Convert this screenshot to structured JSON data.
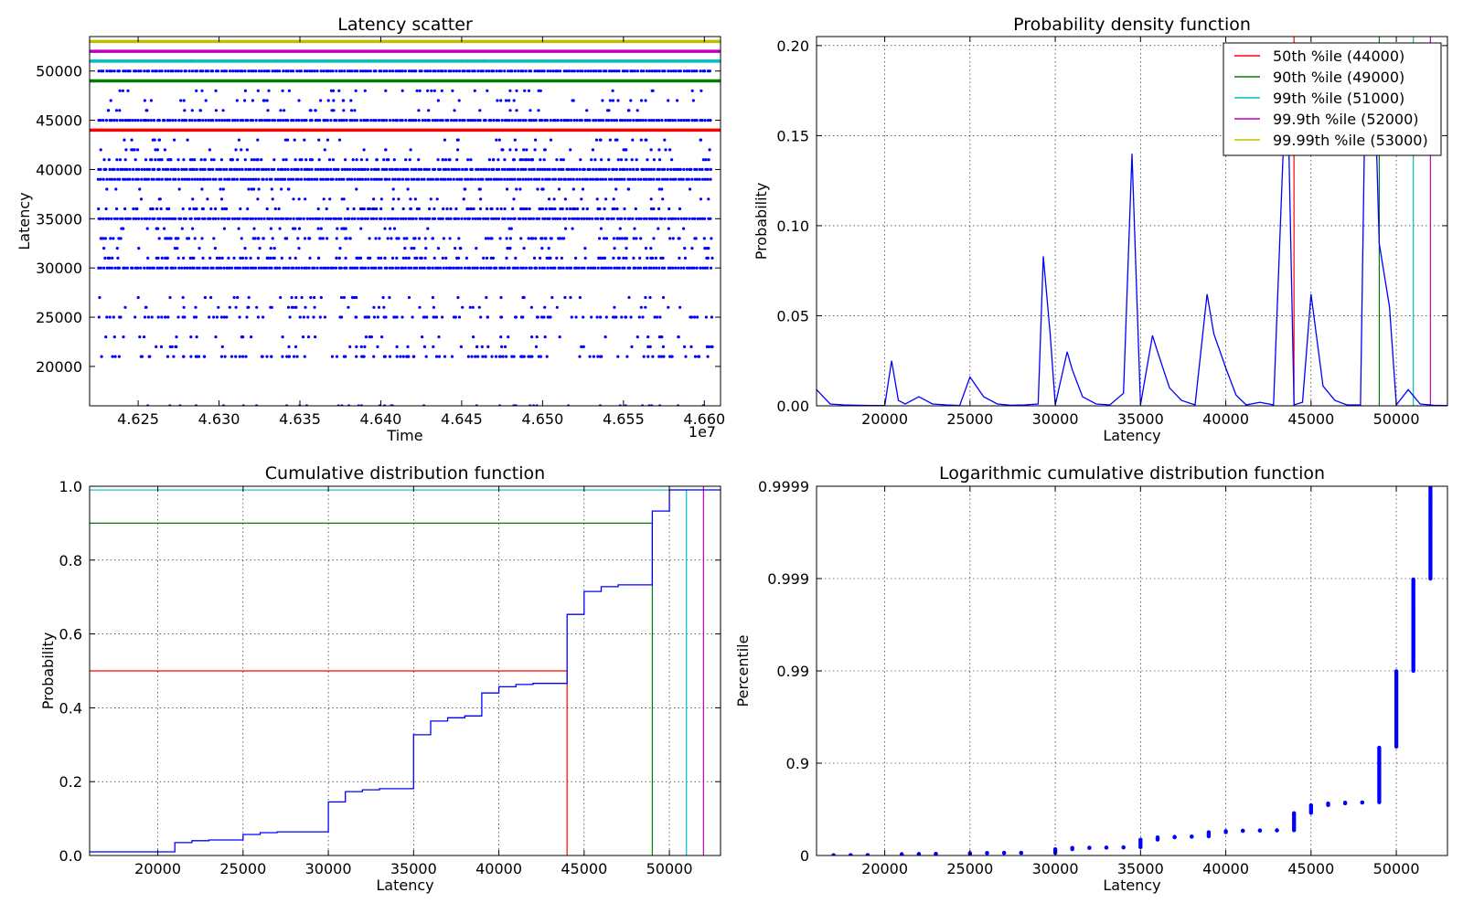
{
  "colors": {
    "blue": "#0000ff",
    "red": "#ff0000",
    "green": "#008000",
    "cyan": "#00bfbf",
    "magenta": "#bf00bf",
    "olive": "#bfbf00"
  },
  "percentile_lines": [
    {
      "label": "50th %ile    (44000)",
      "value": 44000,
      "prob": 0.5,
      "color": "#ff0000"
    },
    {
      "label": "90th %ile    (49000)",
      "value": 49000,
      "prob": 0.9,
      "color": "#008000"
    },
    {
      "label": "99th %ile    (51000)",
      "value": 51000,
      "prob": 0.99,
      "color": "#00bfbf"
    },
    {
      "label": "99.9th %ile  (52000)",
      "value": 52000,
      "prob": 0.999,
      "color": "#bf00bf"
    },
    {
      "label": "99.99th %ile (53000)",
      "value": 53000,
      "prob": 0.9999,
      "color": "#bfbf00"
    }
  ],
  "chart_data": [
    {
      "type": "scatter",
      "title": "Latency scatter",
      "xlabel": "Time",
      "ylabel": "Latency",
      "x_offset_label": "1e7",
      "xlim": [
        4.622,
        4.661
      ],
      "ylim": [
        16000,
        53500
      ],
      "xticks": [
        4.625,
        4.63,
        4.635,
        4.64,
        4.645,
        4.65,
        4.655,
        4.66
      ],
      "xtick_labels": [
        "4.625",
        "4.630",
        "4.635",
        "4.640",
        "4.645",
        "4.650",
        "4.655",
        "4.660"
      ],
      "yticks": [
        20000,
        25000,
        30000,
        35000,
        40000,
        45000,
        50000
      ],
      "ytick_labels": [
        "20000",
        "25000",
        "30000",
        "35000",
        "40000",
        "45000",
        "50000"
      ],
      "grid": false,
      "dense_levels": [
        30000,
        35000,
        39000,
        40000,
        45000,
        50000
      ],
      "medium_levels": [
        21000,
        25000,
        31000,
        33000,
        36000,
        41000,
        51000
      ],
      "sparse_levels": [
        16000,
        22000,
        23000,
        26000,
        27000,
        32000,
        34000,
        37000,
        38000,
        42000,
        43000,
        46000,
        47000,
        48000
      ],
      "hlines": [
        {
          "y": 44000,
          "color": "#ff0000"
        },
        {
          "y": 49000,
          "color": "#008000"
        },
        {
          "y": 51000,
          "color": "#00bfbf"
        },
        {
          "y": 52000,
          "color": "#bf00bf"
        },
        {
          "y": 53000,
          "color": "#bfbf00"
        }
      ]
    },
    {
      "type": "line",
      "title": "Probability density function",
      "xlabel": "Latency",
      "ylabel": "Probability",
      "xlim": [
        16000,
        53000
      ],
      "ylim": [
        0,
        0.205
      ],
      "xticks": [
        20000,
        25000,
        30000,
        35000,
        40000,
        45000,
        50000
      ],
      "xtick_labels": [
        "20000",
        "25000",
        "30000",
        "35000",
        "40000",
        "45000",
        "50000"
      ],
      "yticks": [
        0,
        0.05,
        0.1,
        0.15,
        0.2
      ],
      "ytick_labels": [
        "0.00",
        "0.05",
        "0.10",
        "0.15",
        "0.20"
      ],
      "grid": true,
      "legend_position": "top-right",
      "x": [
        16000,
        16800,
        17600,
        18400,
        19200,
        20000,
        20400,
        20800,
        21200,
        22000,
        22800,
        23600,
        24400,
        25000,
        25800,
        26600,
        27400,
        28200,
        29000,
        29300,
        29700,
        30000,
        30700,
        31000,
        31600,
        32400,
        33200,
        34000,
        34500,
        35000,
        35700,
        36000,
        36700,
        37400,
        38200,
        38900,
        39300,
        40000,
        40600,
        41200,
        42000,
        42800,
        43400,
        43600,
        44000,
        44500,
        45000,
        45700,
        46400,
        47100,
        47900,
        48200,
        48700,
        49000,
        49600,
        50000,
        50700,
        51400,
        52200,
        53000
      ],
      "y": [
        0.009,
        0.001,
        0.0005,
        0.0003,
        0.0002,
        0.0002,
        0.025,
        0.003,
        0.001,
        0.005,
        0.001,
        0.0005,
        0.0002,
        0.016,
        0.005,
        0.001,
        0.0003,
        0.0005,
        0.001,
        0.083,
        0.04,
        0.0005,
        0.03,
        0.02,
        0.005,
        0.001,
        0.0005,
        0.007,
        0.14,
        0.0005,
        0.039,
        0.03,
        0.01,
        0.003,
        0.0005,
        0.062,
        0.04,
        0.021,
        0.006,
        0.0005,
        0.002,
        0.0005,
        0.15,
        0.19,
        0.0005,
        0.002,
        0.062,
        0.011,
        0.003,
        0.0005,
        0.0005,
        0.19,
        0.19,
        0.09,
        0.055,
        0.0005,
        0.009,
        0.001,
        0.0003,
        0.0001
      ]
    },
    {
      "type": "line",
      "title": "Cumulative distribution function",
      "xlabel": "Latency",
      "ylabel": "Probability",
      "xlim": [
        16000,
        53000
      ],
      "ylim": [
        0,
        1.0
      ],
      "xticks": [
        20000,
        25000,
        30000,
        35000,
        40000,
        45000,
        50000
      ],
      "xtick_labels": [
        "20000",
        "25000",
        "30000",
        "35000",
        "40000",
        "45000",
        "50000"
      ],
      "yticks": [
        0,
        0.2,
        0.4,
        0.6,
        0.8,
        1.0
      ],
      "ytick_labels": [
        "0.0",
        "0.2",
        "0.4",
        "0.6",
        "0.8",
        "1.0"
      ],
      "grid": true,
      "step_x": [
        16000,
        21000,
        22000,
        23000,
        25000,
        26000,
        27000,
        30000,
        31000,
        32000,
        33000,
        35000,
        36000,
        37000,
        38000,
        39000,
        40000,
        41000,
        42000,
        44000,
        45000,
        46000,
        47000,
        49000,
        50000,
        51000,
        53000
      ],
      "step_y": [
        0.01,
        0.035,
        0.04,
        0.042,
        0.057,
        0.062,
        0.064,
        0.145,
        0.173,
        0.178,
        0.181,
        0.327,
        0.364,
        0.373,
        0.378,
        0.44,
        0.457,
        0.463,
        0.466,
        0.653,
        0.715,
        0.728,
        0.733,
        0.933,
        0.99,
        0.99,
        0.99
      ]
    },
    {
      "type": "scatter",
      "title": "Logarithmic cumulative distribution function",
      "xlabel": "Latency",
      "ylabel": "Percentile",
      "xlim": [
        16000,
        53000
      ],
      "ylim_label": "log percentile scale",
      "xticks": [
        20000,
        25000,
        30000,
        35000,
        40000,
        45000,
        50000
      ],
      "xtick_labels": [
        "20000",
        "25000",
        "30000",
        "35000",
        "40000",
        "45000",
        "50000"
      ],
      "ytick_labels": [
        "0",
        "0.9",
        "0.99",
        "0.999",
        "0.9999"
      ],
      "grid": true,
      "points": [
        {
          "x": 17000,
          "p0": 0.005,
          "p1": 0.007
        },
        {
          "x": 18000,
          "p0": 0.007,
          "p1": 0.008
        },
        {
          "x": 19000,
          "p0": 0.008,
          "p1": 0.009
        },
        {
          "x": 21000,
          "p0": 0.011,
          "p1": 0.033
        },
        {
          "x": 22000,
          "p0": 0.034,
          "p1": 0.038
        },
        {
          "x": 23000,
          "p0": 0.039,
          "p1": 0.041
        },
        {
          "x": 25000,
          "p0": 0.042,
          "p1": 0.056
        },
        {
          "x": 26000,
          "p0": 0.057,
          "p1": 0.061
        },
        {
          "x": 27000,
          "p0": 0.062,
          "p1": 0.063
        },
        {
          "x": 28000,
          "p0": 0.063,
          "p1": 0.064
        },
        {
          "x": 30000,
          "p0": 0.065,
          "p1": 0.144
        },
        {
          "x": 31000,
          "p0": 0.146,
          "p1": 0.172
        },
        {
          "x": 32000,
          "p0": 0.173,
          "p1": 0.177
        },
        {
          "x": 33000,
          "p0": 0.178,
          "p1": 0.18
        },
        {
          "x": 34000,
          "p0": 0.181,
          "p1": 0.185
        },
        {
          "x": 35000,
          "p0": 0.19,
          "p1": 0.326
        },
        {
          "x": 36000,
          "p0": 0.328,
          "p1": 0.363
        },
        {
          "x": 37000,
          "p0": 0.365,
          "p1": 0.372
        },
        {
          "x": 38000,
          "p0": 0.373,
          "p1": 0.377
        },
        {
          "x": 39000,
          "p0": 0.38,
          "p1": 0.439
        },
        {
          "x": 40000,
          "p0": 0.441,
          "p1": 0.456
        },
        {
          "x": 41000,
          "p0": 0.458,
          "p1": 0.462
        },
        {
          "x": 42000,
          "p0": 0.463,
          "p1": 0.465
        },
        {
          "x": 43000,
          "p0": 0.466,
          "p1": 0.467
        },
        {
          "x": 44000,
          "p0": 0.468,
          "p1": 0.652
        },
        {
          "x": 45000,
          "p0": 0.655,
          "p1": 0.714
        },
        {
          "x": 46000,
          "p0": 0.716,
          "p1": 0.727
        },
        {
          "x": 47000,
          "p0": 0.728,
          "p1": 0.732
        },
        {
          "x": 48000,
          "p0": 0.733,
          "p1": 0.734
        },
        {
          "x": 49000,
          "p0": 0.735,
          "p1": 0.932
        },
        {
          "x": 50000,
          "p0": 0.934,
          "p1": 0.9899
        },
        {
          "x": 51000,
          "p0": 0.99,
          "p1": 0.99898
        },
        {
          "x": 52000,
          "p0": 0.999,
          "p1": 0.99996
        }
      ]
    }
  ]
}
